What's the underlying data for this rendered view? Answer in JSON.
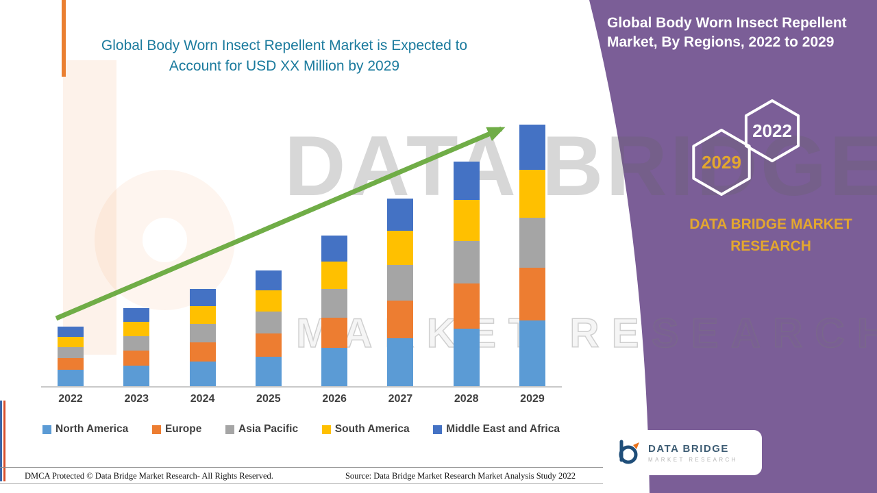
{
  "header": {
    "chart_title_line1": "Global Body Worn Insect Repellent Market is Expected to",
    "chart_title_line2": "Account for USD XX Million by 2029",
    "title_color": "#1A7A9D"
  },
  "right_panel": {
    "title_line1": "Global Body Worn Insect Repellent",
    "title_line2": "Market, By Regions, 2022 to 2029",
    "hexagon_back_label": "2022",
    "hexagon_front_label": "2029",
    "brand_name": "DATA BRIDGE MARKET RESEARCH",
    "accent_color": "#E3A72F",
    "panel_color": "#7B5E97"
  },
  "watermark": {
    "line1": "DATA BRIDGE",
    "line2": "MARKET RESEARCH"
  },
  "logo_box": {
    "brand_line1": "DATA BRIDGE",
    "brand_line2": "MARKET RESEARCH"
  },
  "footer": {
    "dmca": "DMCA Protected © Data Bridge Market Research- All Rights Reserved.",
    "source": "Source: Data Bridge Market Research Market Analysis Study 2022"
  },
  "chart_data": {
    "type": "bar",
    "stacked": true,
    "title": "Global Body Worn Insect Repellent Market is Expected to Account for USD XX Million by 2029",
    "xlabel": "",
    "ylabel": "",
    "y_axis_visible": false,
    "ylim": [
      0,
      400
    ],
    "legend_position": "bottom",
    "categories": [
      "2022",
      "2023",
      "2024",
      "2025",
      "2026",
      "2027",
      "2028",
      "2029"
    ],
    "series": [
      {
        "name": "North America",
        "color": "#5B9BD5",
        "values": [
          24,
          30,
          36,
          43,
          56,
          70,
          84,
          96
        ]
      },
      {
        "name": "Europe",
        "color": "#ED7D31",
        "values": [
          17,
          22,
          28,
          34,
          44,
          55,
          66,
          77
        ]
      },
      {
        "name": "Asia Pacific",
        "color": "#A5A5A5",
        "values": [
          16,
          21,
          27,
          32,
          42,
          52,
          62,
          73
        ]
      },
      {
        "name": "South America",
        "color": "#FFC000",
        "values": [
          15,
          21,
          26,
          31,
          40,
          50,
          60,
          70
        ]
      },
      {
        "name": "Middle East and Africa",
        "color": "#4472C4",
        "values": [
          15,
          20,
          25,
          29,
          38,
          47,
          56,
          66
        ]
      }
    ],
    "trend_arrow": true,
    "arrow_color": "#70AD47"
  }
}
